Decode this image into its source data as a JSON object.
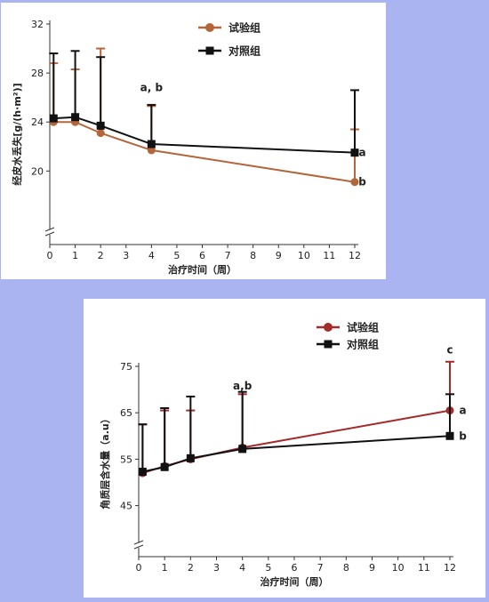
{
  "background": "#a9b4f0",
  "chart_data": [
    {
      "type": "line",
      "xlabel": "治疗时间（周）",
      "ylabel": "经皮水丢失[g/(h·m²)]",
      "x_ticks": [
        0,
        1,
        2,
        3,
        4,
        5,
        6,
        7,
        8,
        9,
        10,
        11,
        12
      ],
      "y_ticks": [
        20,
        24,
        28,
        32
      ],
      "xlim": [
        0,
        12
      ],
      "ylim": [
        14,
        32
      ],
      "y_axis_break": true,
      "legend_position": "top-center",
      "series": [
        {
          "name": "试验组",
          "color": "#b5653a",
          "marker": "circle",
          "x": [
            0.15,
            1,
            2,
            4,
            12
          ],
          "y": [
            24.0,
            24.0,
            23.1,
            21.7,
            19.1
          ],
          "error_upper": [
            28.8,
            28.3,
            30.0,
            25.3,
            23.4
          ]
        },
        {
          "name": "对照组",
          "color": "#111111",
          "marker": "square",
          "x": [
            0.15,
            1,
            2,
            4,
            12
          ],
          "y": [
            24.3,
            24.4,
            23.7,
            22.2,
            21.5
          ],
          "error_upper": [
            29.6,
            29.8,
            29.3,
            25.4,
            26.6
          ]
        }
      ],
      "annotations": [
        {
          "text": "a, b",
          "x": 4,
          "y": 26.8
        },
        {
          "text": "a",
          "x": 12.3,
          "y": 21.5
        },
        {
          "text": "b",
          "x": 12.3,
          "y": 19.1
        }
      ]
    },
    {
      "type": "line",
      "xlabel": "治疗时间（周）",
      "ylabel": "角质层含水量（a.u）",
      "x_ticks": [
        0,
        1,
        2,
        3,
        4,
        5,
        6,
        7,
        8,
        9,
        10,
        11,
        12
      ],
      "y_ticks": [
        45,
        55,
        65,
        75
      ],
      "xlim": [
        0,
        12
      ],
      "ylim": [
        34,
        75
      ],
      "y_axis_break": true,
      "legend_position": "top-right",
      "series": [
        {
          "name": "试验组",
          "color": "#a52a2a",
          "marker": "circle",
          "x": [
            0.15,
            1,
            2,
            4,
            12
          ],
          "y": [
            52.0,
            53.5,
            55.0,
            57.5,
            65.5
          ],
          "error_upper": [
            62.5,
            65.5,
            65.5,
            69.0,
            76.0
          ]
        },
        {
          "name": "对照组",
          "color": "#111111",
          "marker": "square",
          "x": [
            0.15,
            1,
            2,
            4,
            12
          ],
          "y": [
            52.3,
            53.3,
            55.2,
            57.2,
            60.0
          ],
          "error_upper": [
            62.5,
            66.0,
            68.5,
            69.5,
            69.0
          ]
        }
      ],
      "annotations": [
        {
          "text": "a,b",
          "x": 4,
          "y": 70.8
        },
        {
          "text": "c",
          "x": 12,
          "y": 78.5
        },
        {
          "text": "a",
          "x": 12.5,
          "y": 65.5
        },
        {
          "text": "b",
          "x": 12.5,
          "y": 60.0
        }
      ]
    }
  ]
}
